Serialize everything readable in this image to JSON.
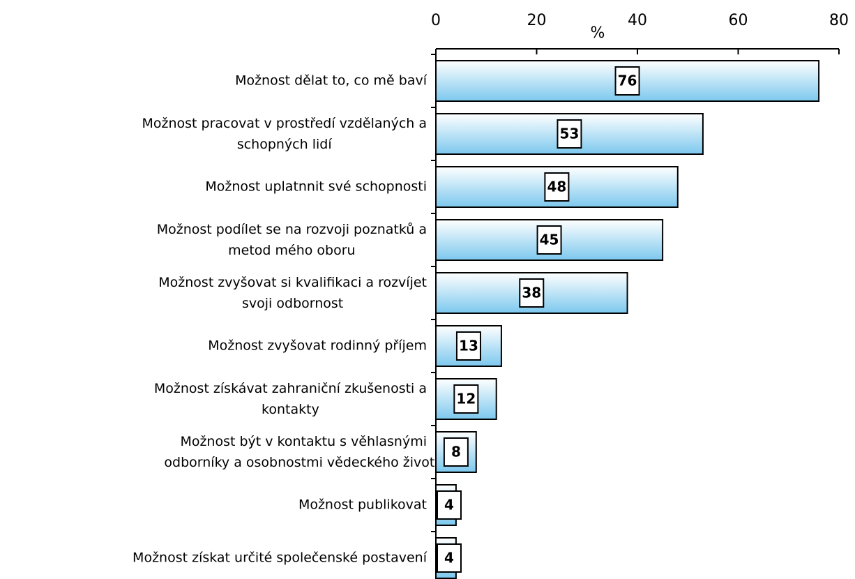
{
  "chart_data": {
    "type": "bar",
    "orientation": "horizontal",
    "xlabel": "%",
    "categories": [
      "Možnost dělat to, co mě baví",
      "Možnost pracovat v prostředí vzdělaných a\nschopných lidí",
      "Možnost uplatnnit své schopnosti",
      "Možnost podílet se na rozvoji poznatků a\nmetod mého oboru",
      "Možnost zvyšovat si kvalifikaci a rozvíjet\nsvoji odbornost",
      "Možnost zvyšovat rodinný příjem",
      "Možnost získávat zahraniční zkušenosti a\nkontakty",
      "Možnost být v kontaktu s věhlasnými\nodborníky a osobnostmi vědeckého života",
      "Možnost publikovat",
      "Možnost získat určité společenské postavení"
    ],
    "values": [
      76,
      53,
      48,
      45,
      38,
      13,
      12,
      8,
      4,
      4
    ],
    "color": "#9ad6f3",
    "xlim": [
      0,
      80
    ],
    "xticks": [
      0,
      20,
      40,
      60,
      80
    ]
  }
}
